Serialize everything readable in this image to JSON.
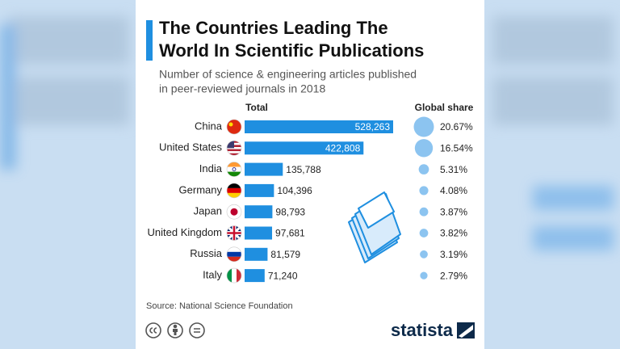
{
  "chart_data": {
    "type": "bar",
    "title": [
      "The Countries Leading The",
      "World In Scientific Publications"
    ],
    "subtitle": [
      "Number of science & engineering articles published",
      "in peer-reviewed journals in 2018"
    ],
    "categories": [
      "China",
      "United States",
      "India",
      "Germany",
      "Japan",
      "United Kingdom",
      "Russia",
      "Italy"
    ],
    "series": [
      {
        "name": "Total",
        "color": "#1f8fe0",
        "values": [
          528263,
          422808,
          135788,
          104396,
          98793,
          97681,
          81579,
          71240
        ],
        "value_labels": [
          "528,263",
          "422,808",
          "135,788",
          "104,396",
          "98,793",
          "97,681",
          "81,579",
          "71,240"
        ]
      },
      {
        "name": "Global share",
        "color": "#8cc4f0",
        "values": [
          20.67,
          16.54,
          5.31,
          4.08,
          3.87,
          3.82,
          3.19,
          2.79
        ],
        "value_labels": [
          "20.67%",
          "16.54%",
          "5.31%",
          "4.08%",
          "3.87%",
          "3.82%",
          "3.19%",
          "2.79%"
        ]
      }
    ],
    "source": "Source: National Science Foundation",
    "brand": "statista"
  }
}
